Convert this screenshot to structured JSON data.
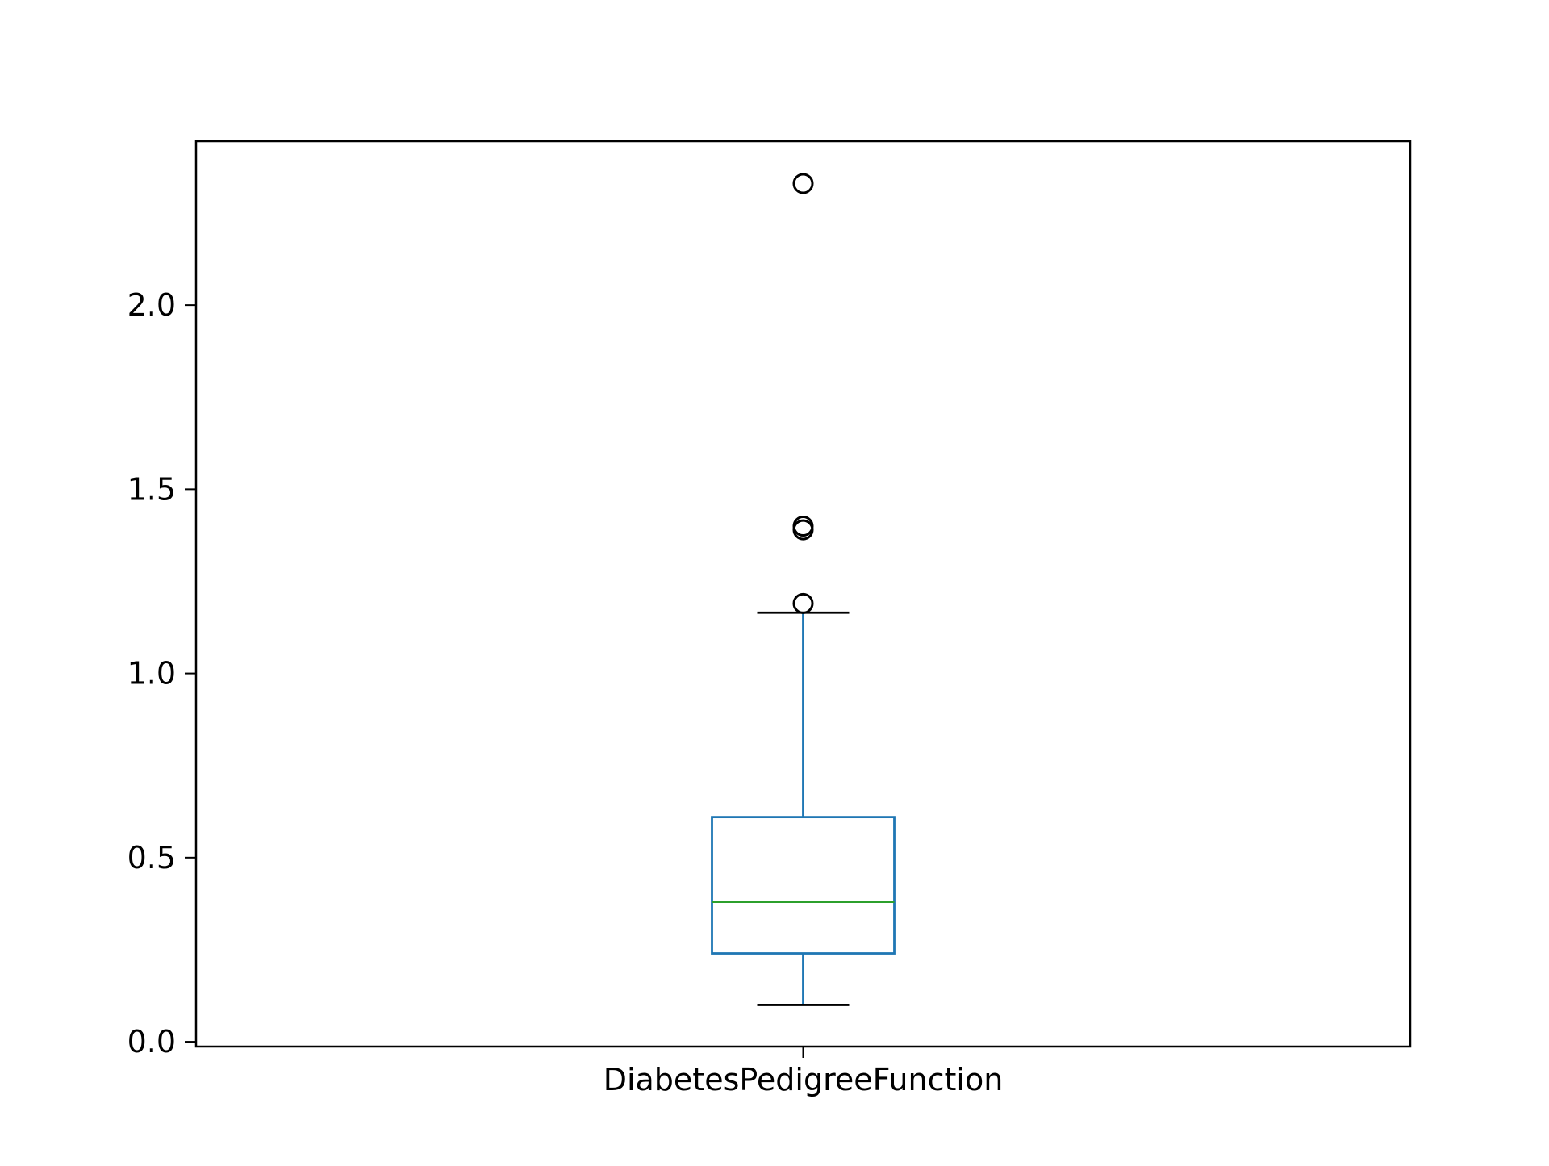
{
  "chart_data": {
    "type": "box",
    "categories": [
      "DiabetesPedigreeFunction"
    ],
    "boxes": [
      {
        "category": "DiabetesPedigreeFunction",
        "whisker_low": 0.1,
        "q1": 0.24,
        "median": 0.38,
        "q3": 0.61,
        "whisker_high": 1.165,
        "outliers": [
          1.19,
          1.39,
          1.4,
          2.33
        ]
      }
    ],
    "ylim": [
      -0.013,
      2.445
    ],
    "yticks": [
      0.0,
      0.5,
      1.0,
      1.5,
      2.0
    ],
    "ytick_labels": [
      "0.0",
      "0.5",
      "1.0",
      "1.5",
      "2.0"
    ],
    "grid": false,
    "title": "",
    "xlabel": "",
    "ylabel": "",
    "colors": {
      "box": "#1f77b4",
      "median": "#2ca02c",
      "caps": "#000000",
      "outlier": "#000000",
      "frame": "#000000"
    }
  }
}
